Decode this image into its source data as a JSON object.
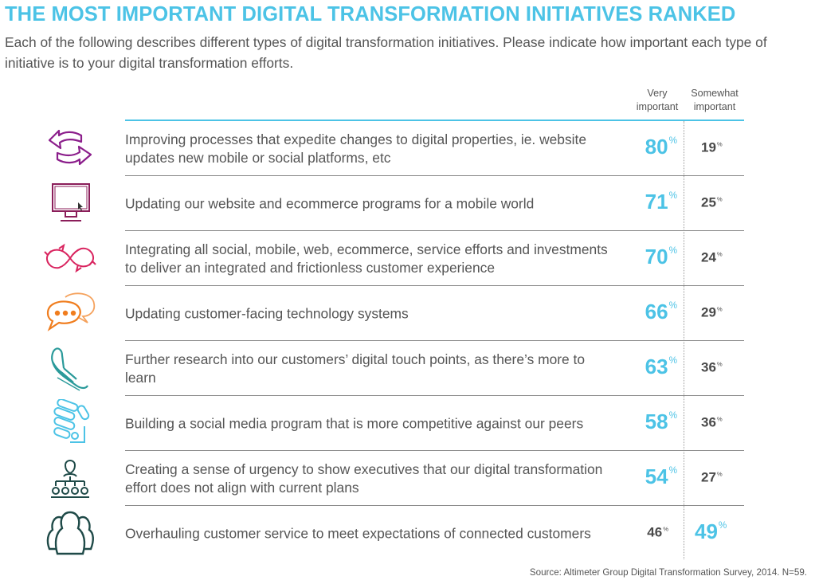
{
  "title": "THE MOST IMPORTANT DIGITAL TRANSFORMATION INITIATIVES RANKED",
  "subtitle": "Each of the following describes different types of digital transformation initiatives. Please indicate how important each type of initiative is to your digital transformation efforts.",
  "columns": {
    "very": {
      "line1": "Very",
      "line2": "important"
    },
    "somewhat": {
      "line1": "Somewhat",
      "line2": "important"
    }
  },
  "percent_sign": "%",
  "source": "Source: Altimeter Group Digital Transformation Survey, 2014. N=59.",
  "colors": {
    "accent": "#4cc3e6",
    "text": "#4a4a4a",
    "purple": "#8b1e8b",
    "magenta": "#d9245f",
    "orange": "#f07d1e",
    "teal": "#2a9a9a",
    "dark_teal": "#1f4a48"
  },
  "rows": [
    {
      "icon": "arrows-exchange-icon",
      "label": "Improving processes that expedite changes to digital properties, ie. website updates new mobile or social platforms, etc",
      "very": "80",
      "somewhat": "19",
      "highlight": "very"
    },
    {
      "icon": "monitor-cursor-icon",
      "label": "Updating our website and ecommerce programs for a mobile world",
      "very": "71",
      "somewhat": "25",
      "highlight": "very"
    },
    {
      "icon": "infinity-arrows-icon",
      "label": "Integrating all social, mobile, web, ecommerce, service efforts and investments to deliver an integrated and frictionless customer experience",
      "very": "70",
      "somewhat": "24",
      "highlight": "very"
    },
    {
      "icon": "speech-bubbles-icon",
      "label": "Updating customer-facing technology systems",
      "very": "66",
      "somewhat": "29",
      "highlight": "very"
    },
    {
      "icon": "hand-touch-icon",
      "label": "Further research into our customers’ digital touch points, as there’s more to learn",
      "very": "63",
      "somewhat": "36",
      "highlight": "very"
    },
    {
      "icon": "social-chain-icon",
      "label": "Building a social media program that is more competitive against our peers",
      "very": "58",
      "somewhat": "36",
      "highlight": "very"
    },
    {
      "icon": "org-chart-icon",
      "label": "Creating a sense of urgency to show executives that our digital transformation effort does not align with current plans",
      "very": "54",
      "somewhat": "27",
      "highlight": "very"
    },
    {
      "icon": "customer-group-icon",
      "label": "Overhauling customer service to meet expectations of connected customers",
      "very": "46",
      "somewhat": "49",
      "highlight": "somewhat"
    }
  ],
  "chart_data": {
    "type": "table",
    "title": "THE MOST IMPORTANT DIGITAL TRANSFORMATION INITIATIVES RANKED",
    "unit": "%",
    "categories": [
      "Improving processes that expedite changes to digital properties, ie. website updates new mobile or social platforms, etc",
      "Updating our website and ecommerce programs for a mobile world",
      "Integrating all social, mobile, web, ecommerce, service efforts and investments to deliver an integrated and frictionless customer experience",
      "Updating customer-facing technology systems",
      "Further research into our customers’ digital touch points, as there’s more to learn",
      "Building a social media program that is more competitive against our peers",
      "Creating a sense of urgency to show executives that our digital transformation effort does not align with current plans",
      "Overhauling customer service to meet expectations of connected customers"
    ],
    "series": [
      {
        "name": "Very important",
        "values": [
          80,
          71,
          70,
          66,
          63,
          58,
          54,
          46
        ]
      },
      {
        "name": "Somewhat important",
        "values": [
          19,
          25,
          24,
          29,
          36,
          36,
          27,
          49
        ]
      }
    ]
  }
}
